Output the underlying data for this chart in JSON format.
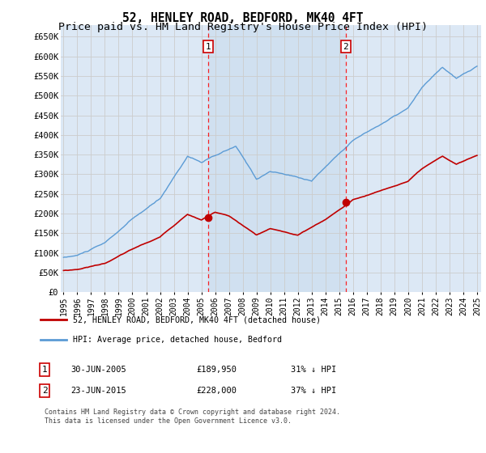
{
  "title": "52, HENLEY ROAD, BEDFORD, MK40 4FT",
  "subtitle": "Price paid vs. HM Land Registry's House Price Index (HPI)",
  "title_fontsize": 10.5,
  "subtitle_fontsize": 9.5,
  "hpi_color": "#5b9bd5",
  "price_color": "#c00000",
  "background_color": "#ffffff",
  "chart_bg_color": "#dce8f5",
  "highlight_color": "#cfe0f0",
  "grid_color": "#cccccc",
  "ylim_min": 0,
  "ylim_max": 680000,
  "yticks": [
    0,
    50000,
    100000,
    150000,
    200000,
    250000,
    300000,
    350000,
    400000,
    450000,
    500000,
    550000,
    600000,
    650000
  ],
  "ytick_labels": [
    "£0",
    "£50K",
    "£100K",
    "£150K",
    "£200K",
    "£250K",
    "£300K",
    "£350K",
    "£400K",
    "£450K",
    "£500K",
    "£550K",
    "£600K",
    "£650K"
  ],
  "purchase1_x": 2005.49,
  "purchase1_y": 189950,
  "purchase2_x": 2015.47,
  "purchase2_y": 228000,
  "xmin": 1994.8,
  "xmax": 2025.3,
  "legend_line1": "52, HENLEY ROAD, BEDFORD, MK40 4FT (detached house)",
  "legend_line2": "HPI: Average price, detached house, Bedford",
  "ann1_date": "30-JUN-2005",
  "ann1_price": "£189,950",
  "ann1_pct": "31% ↓ HPI",
  "ann2_date": "23-JUN-2015",
  "ann2_price": "£228,000",
  "ann2_pct": "37% ↓ HPI",
  "footer": "Contains HM Land Registry data © Crown copyright and database right 2024.\nThis data is licensed under the Open Government Licence v3.0."
}
